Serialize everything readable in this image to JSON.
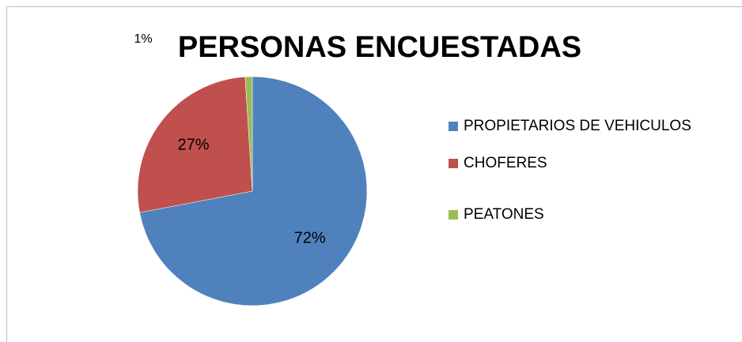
{
  "chart_data": {
    "type": "pie",
    "title": "PERSONAS ENCUESTADAS",
    "categories": [
      "PROPIETARIOS DE VEHICULOS",
      "CHOFERES",
      "PEATONES"
    ],
    "values": [
      72,
      27,
      1
    ],
    "value_labels": [
      "72%",
      "27%",
      "1%"
    ],
    "colors": [
      "#4f81bd",
      "#c0504d",
      "#9bbb59"
    ],
    "legend": "right"
  }
}
